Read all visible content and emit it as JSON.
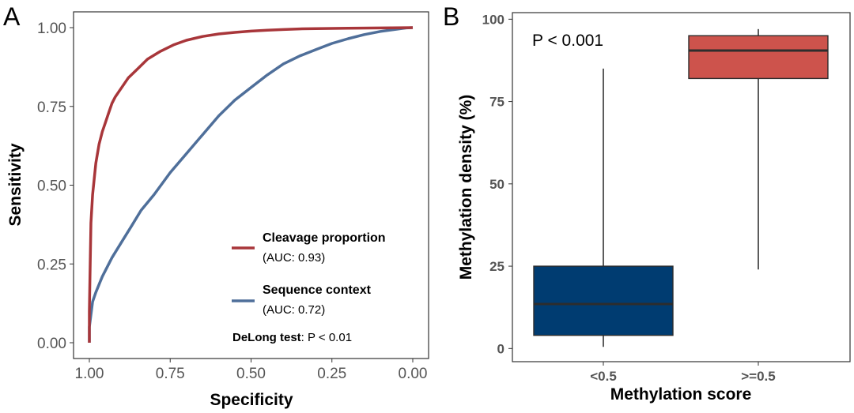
{
  "panels": {
    "a": {
      "letter": "A",
      "annotation_bold": "DeLong test",
      "annotation_rest": ": P < 0.01"
    },
    "b": {
      "letter": "B",
      "pvalue": "P < 0.001"
    }
  },
  "colors": {
    "cleavage": "#a8363a",
    "sequence": "#4f6f9a",
    "low_box": "#003c71",
    "high_box": "#cd534c",
    "median_line": "#2d2d2d",
    "whisker": "#333333"
  },
  "chart_data": [
    {
      "type": "line",
      "panel": "A",
      "xlabel": "Specificity",
      "ylabel": "Sensitivity",
      "xlim": [
        1.0,
        0.0
      ],
      "ylim": [
        0.0,
        1.0
      ],
      "x_reversed": true,
      "x_ticks": [
        "1.00",
        "0.75",
        "0.50",
        "0.25",
        "0.00"
      ],
      "x_tick_values": [
        1.0,
        0.75,
        0.5,
        0.25,
        0.0
      ],
      "y_ticks": [
        "0.00",
        "0.25",
        "0.50",
        "0.75",
        "1.00"
      ],
      "y_tick_values": [
        0.0,
        0.25,
        0.5,
        0.75,
        1.0
      ],
      "grid": false,
      "legend_position": "bottom-right",
      "series": [
        {
          "name": "Cleavage proportion",
          "subtitle": "(AUC: 0.93)",
          "x": [
            1.0,
            1.0,
            0.995,
            0.99,
            0.98,
            0.97,
            0.96,
            0.95,
            0.94,
            0.93,
            0.92,
            0.9,
            0.88,
            0.85,
            0.82,
            0.78,
            0.74,
            0.7,
            0.65,
            0.6,
            0.55,
            0.5,
            0.45,
            0.4,
            0.35,
            0.3,
            0.2,
            0.1,
            0.0
          ],
          "y": [
            0.0,
            0.1,
            0.38,
            0.47,
            0.57,
            0.63,
            0.67,
            0.7,
            0.73,
            0.76,
            0.78,
            0.81,
            0.84,
            0.87,
            0.9,
            0.925,
            0.945,
            0.96,
            0.972,
            0.98,
            0.985,
            0.989,
            0.992,
            0.994,
            0.996,
            0.997,
            0.998,
            0.999,
            1.0
          ]
        },
        {
          "name": "Sequence context",
          "subtitle": "(AUC: 0.72)",
          "x": [
            1.0,
            1.0,
            0.99,
            0.98,
            0.96,
            0.93,
            0.9,
            0.87,
            0.84,
            0.8,
            0.75,
            0.7,
            0.65,
            0.6,
            0.55,
            0.5,
            0.45,
            0.4,
            0.35,
            0.3,
            0.25,
            0.2,
            0.15,
            0.1,
            0.05,
            0.02,
            0.0
          ],
          "y": [
            0.0,
            0.05,
            0.13,
            0.16,
            0.21,
            0.27,
            0.32,
            0.37,
            0.42,
            0.47,
            0.54,
            0.6,
            0.66,
            0.72,
            0.77,
            0.81,
            0.85,
            0.885,
            0.91,
            0.93,
            0.95,
            0.965,
            0.978,
            0.988,
            0.995,
            0.999,
            1.0
          ]
        }
      ]
    },
    {
      "type": "box",
      "panel": "B",
      "xlabel": "Methylation score",
      "ylabel": "Methylation density (%)",
      "ylim": [
        -4,
        102
      ],
      "y_ticks": [
        "0",
        "25",
        "50",
        "75",
        "100"
      ],
      "y_tick_values": [
        0,
        25,
        50,
        75,
        100
      ],
      "categories": [
        "<0.5",
        ">=0.5"
      ],
      "grid": false,
      "boxes": [
        {
          "category": "<0.5",
          "min": 0.5,
          "q1": 4,
          "median": 13.5,
          "q3": 25,
          "max": 85
        },
        {
          "category": ">=0.5",
          "min": 24,
          "q1": 82,
          "median": 90.5,
          "q3": 95,
          "max": 97
        }
      ]
    }
  ]
}
